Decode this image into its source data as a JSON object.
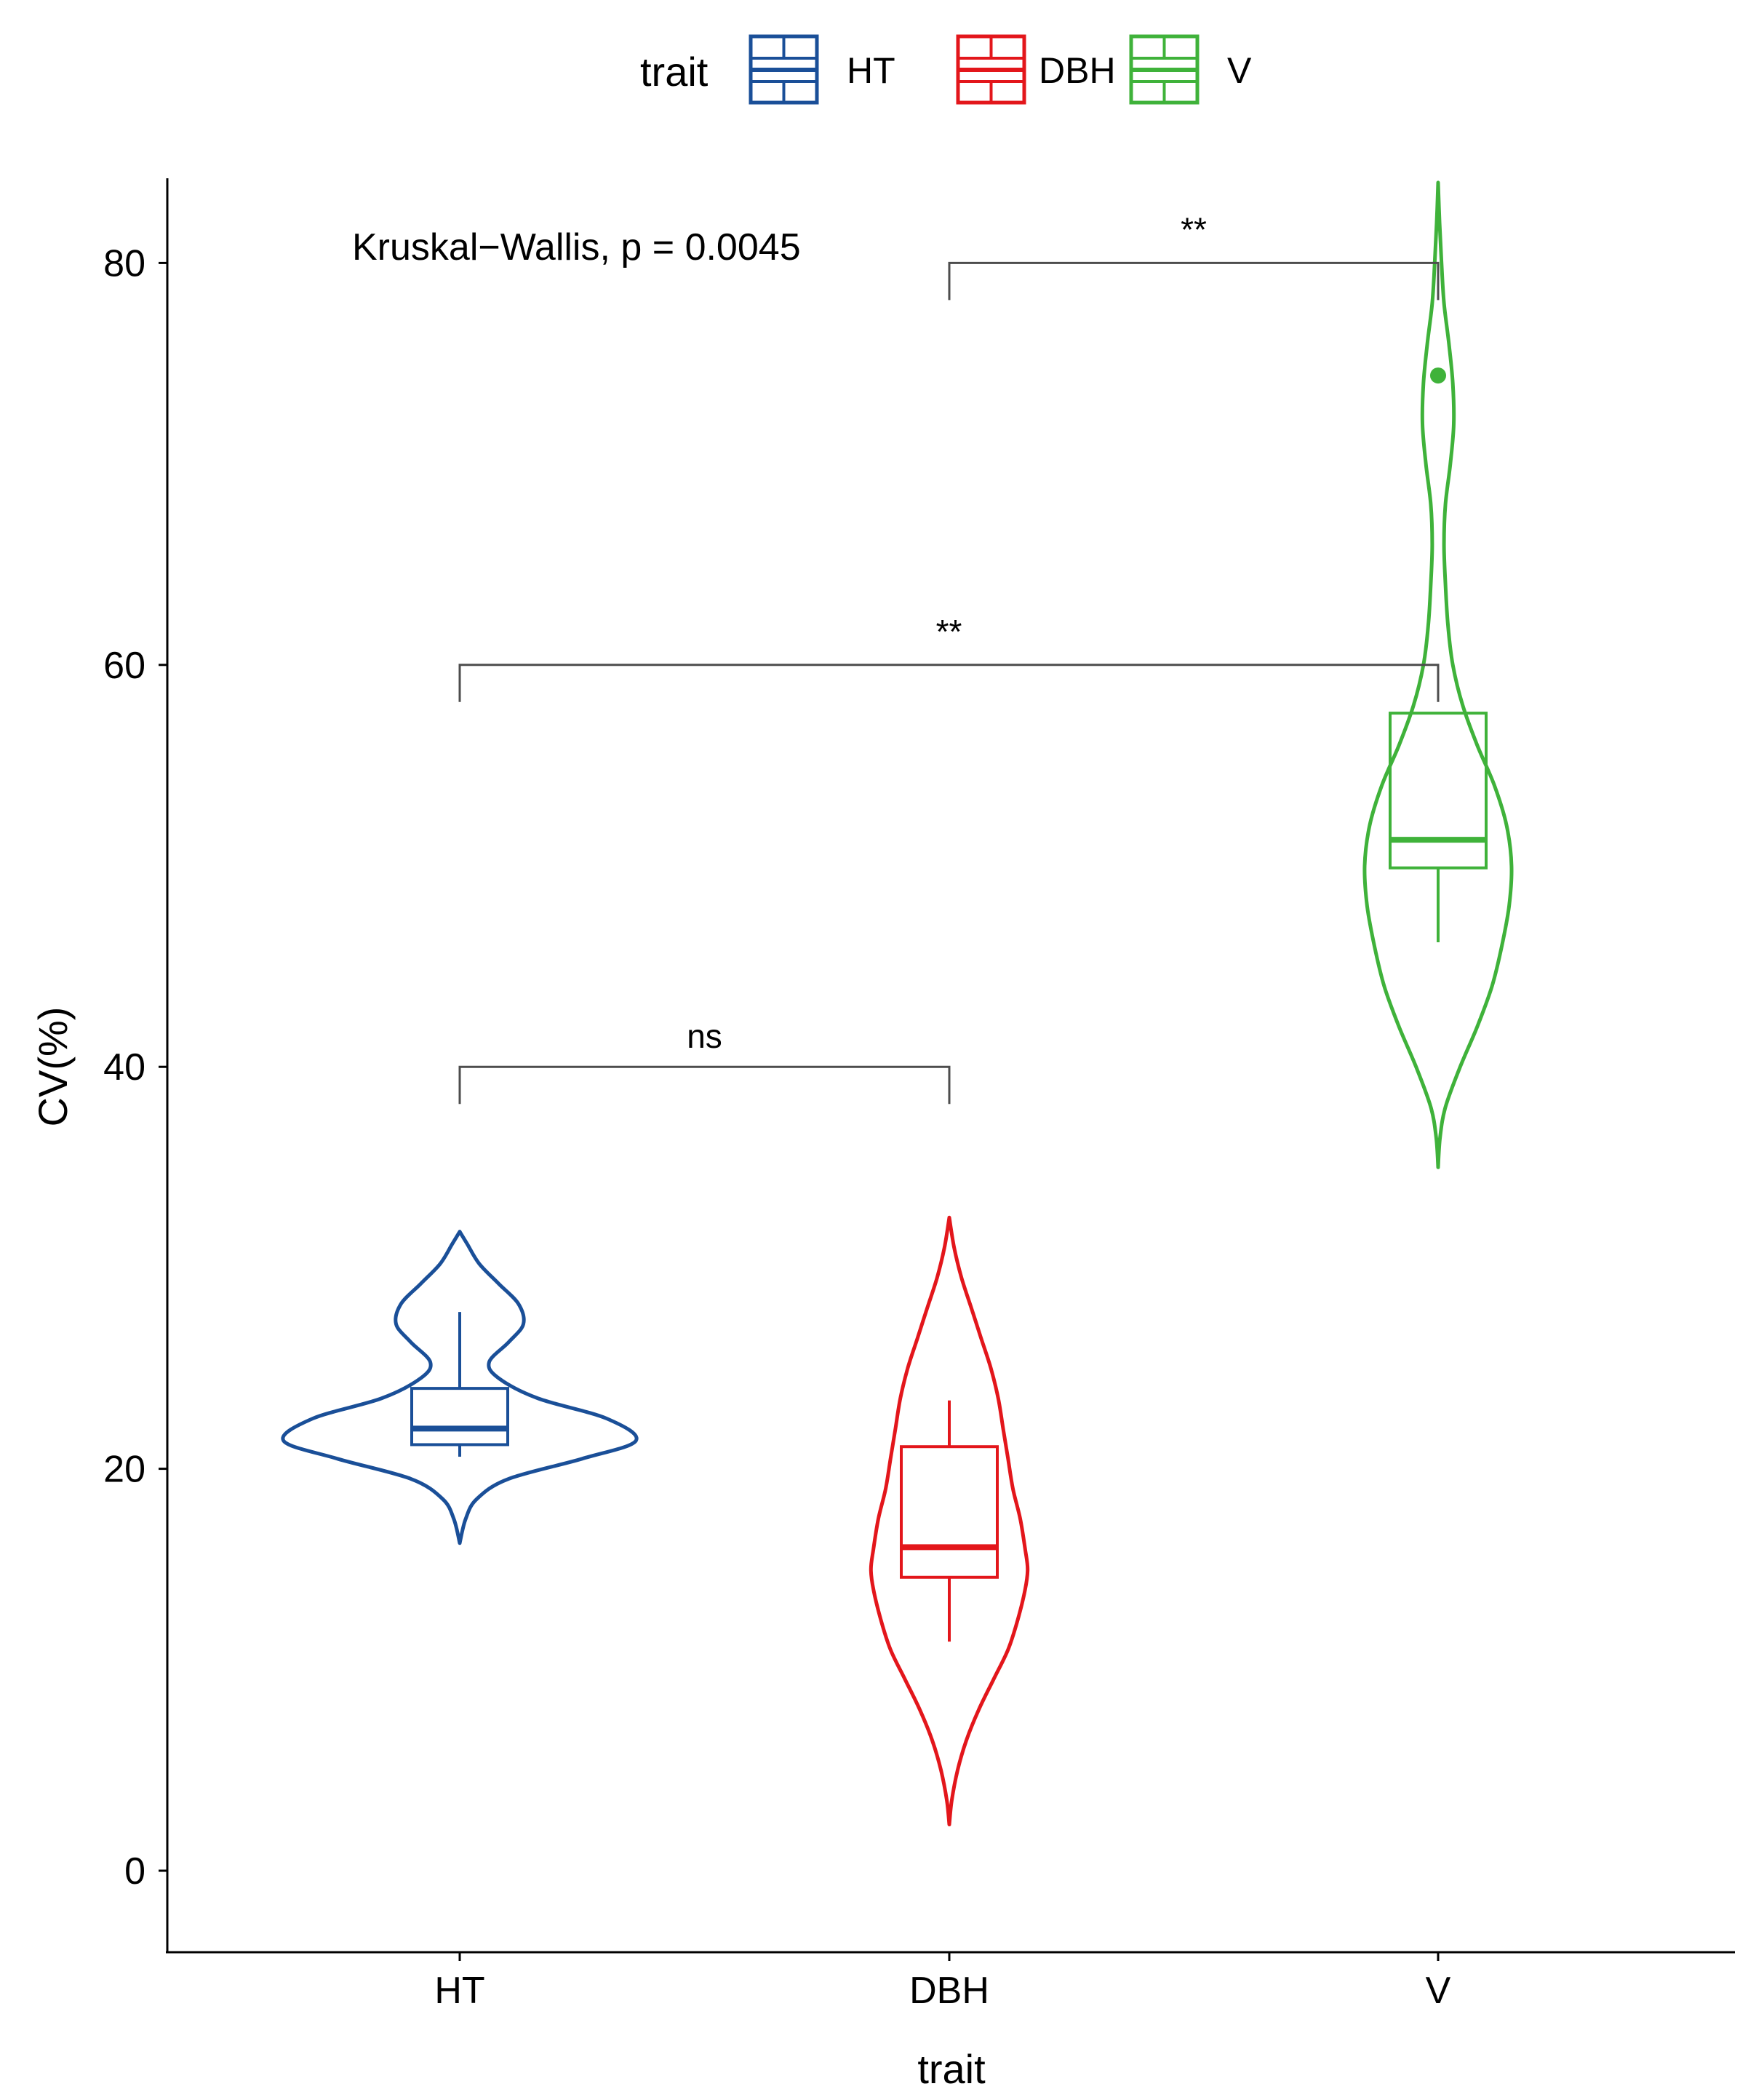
{
  "chart_data": {
    "type": "violin",
    "xlabel": "trait",
    "ylabel": "CV(%)",
    "ylim": [
      -4,
      84
    ],
    "yticks": [
      0,
      20,
      40,
      60,
      80
    ],
    "categories": [
      "HT",
      "DBH",
      "V"
    ],
    "legend": {
      "title": "trait",
      "position": "top",
      "entries": [
        "HT",
        "DBH",
        "V"
      ]
    },
    "colors": {
      "HT": "#1a4f98",
      "DBH": "#e3161b",
      "V": "#3fb23a"
    },
    "annotation": "Kruskal−Wallis, p = 0.0045",
    "series": [
      {
        "name": "HT",
        "box": {
          "q1": 21.2,
          "median": 22.0,
          "q3": 24.0,
          "whisker_low": 20.6,
          "whisker_high": 27.8
        },
        "outliers": [],
        "violin": {
          "y": [
            16.3,
            17.5,
            18.5,
            19.5,
            20.5,
            21.4,
            22.5,
            23.5,
            24.5,
            25.3,
            26.3,
            27.2,
            28.2,
            29.2,
            30.2,
            31.2,
            31.8
          ],
          "half_width": [
            0,
            0.012,
            0.035,
            0.1,
            0.25,
            0.36,
            0.3,
            0.16,
            0.08,
            0.06,
            0.1,
            0.13,
            0.12,
            0.08,
            0.04,
            0.015,
            0
          ]
        }
      },
      {
        "name": "DBH",
        "box": {
          "q1": 14.6,
          "median": 16.1,
          "q3": 21.1,
          "whisker_low": 11.4,
          "whisker_high": 23.4
        },
        "outliers": [],
        "violin": {
          "y": [
            2.3,
            3.5,
            5,
            6.5,
            8,
            9.5,
            11,
            12.5,
            14,
            15,
            16,
            17.5,
            19,
            20.5,
            22,
            23.5,
            25,
            26.5,
            28,
            29.5,
            31,
            32.5
          ],
          "half_width": [
            0,
            0.005,
            0.017,
            0.035,
            0.06,
            0.09,
            0.12,
            0.14,
            0.155,
            0.16,
            0.155,
            0.145,
            0.13,
            0.12,
            0.11,
            0.1,
            0.085,
            0.065,
            0.045,
            0.025,
            0.01,
            0
          ]
        }
      },
      {
        "name": "V",
        "box": {
          "q1": 49.9,
          "median": 51.3,
          "q3": 57.6,
          "whisker_low": 46.2,
          "whisker_high": 57.6
        },
        "outliers": [
          74.4
        ],
        "violin": {
          "y": [
            35,
            36.5,
            38,
            40,
            42,
            44,
            46,
            48,
            50,
            52,
            54,
            56,
            58,
            60,
            62,
            64,
            66,
            68,
            70,
            72,
            74,
            76,
            78,
            80,
            82,
            84
          ],
          "half_width": [
            0,
            0.004,
            0.015,
            0.045,
            0.08,
            0.11,
            0.13,
            0.145,
            0.15,
            0.14,
            0.115,
            0.08,
            0.05,
            0.03,
            0.02,
            0.015,
            0.012,
            0.015,
            0.025,
            0.032,
            0.03,
            0.022,
            0.012,
            0.007,
            0.003,
            0
          ]
        }
      }
    ],
    "comparisons": [
      {
        "group1": "HT",
        "group2": "DBH",
        "y": 40,
        "label": "ns"
      },
      {
        "group1": "HT",
        "group2": "V",
        "y": 60,
        "label": "**"
      },
      {
        "group1": "DBH",
        "group2": "V",
        "y": 80,
        "label": "**"
      }
    ]
  }
}
